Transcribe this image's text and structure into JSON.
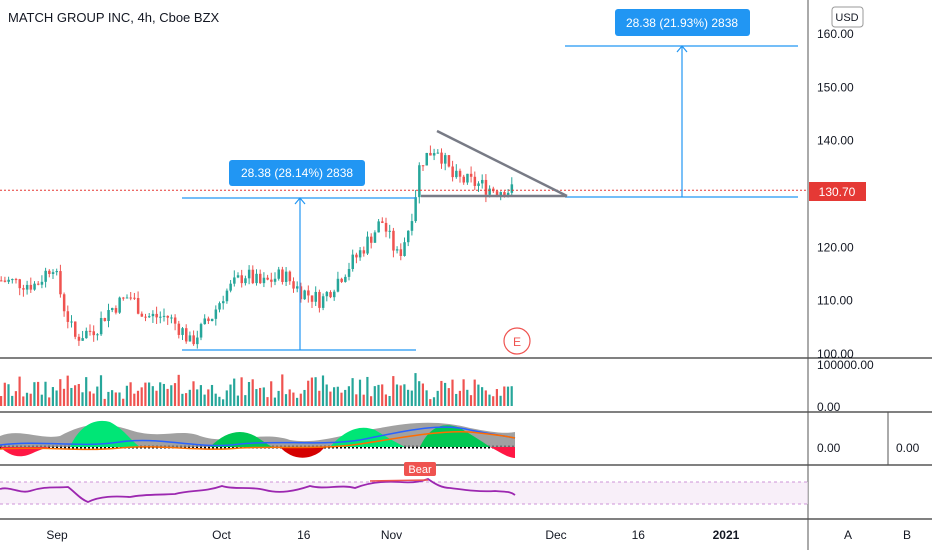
{
  "header": {
    "symbol_title": "MATCH GROUP INC, 4h, Cboe BZX",
    "currency_button": "USD"
  },
  "colors": {
    "up": "#26a69a",
    "down": "#ef5350",
    "measure": "#2196f3",
    "triangle": "#787b86",
    "last_price": "#e53935",
    "rsi": "#9c27b0"
  },
  "price_axis": {
    "ticks": [
      "160.00",
      "150.00",
      "140.00",
      "130.00",
      "120.00",
      "110.00",
      "100.00"
    ],
    "last_price_label": "130.70"
  },
  "volume_pane": {
    "top_label": "100000.00",
    "bottom_label": "0.00"
  },
  "osc_pane": {
    "label": "0.00",
    "extra_label": "0.00"
  },
  "rsi_pane": {
    "signal_label": "Bear"
  },
  "measures": {
    "left": "28.38 (28.14%) 2838",
    "right": "28.38 (21.93%) 2838"
  },
  "earnings_marker": "E",
  "time_axis": {
    "ticks": [
      "Sep",
      "Oct",
      "16",
      "Nov",
      "Dec",
      "16",
      "2021"
    ]
  },
  "corner_buttons": {
    "a": "A",
    "b": "B"
  },
  "chart_data": {
    "type": "candlestick",
    "title": "MATCH GROUP INC, 4h, Cboe BZX",
    "ylim": [
      100,
      160
    ],
    "last_price": 130.7,
    "x_tick_labels": [
      "Sep",
      "Oct",
      "16",
      "Nov",
      "Dec",
      "16",
      "2021"
    ],
    "y_tick_labels": [
      "160.00",
      "150.00",
      "140.00",
      "130.00",
      "120.00",
      "110.00",
      "100.00"
    ],
    "close_path": [
      {
        "date": "2020-08-20",
        "close": 114
      },
      {
        "date": "2020-08-24",
        "close": 113.5
      },
      {
        "date": "2020-08-28",
        "close": 113
      },
      {
        "date": "2020-08-31",
        "close": 117
      },
      {
        "date": "2020-09-02",
        "close": 109
      },
      {
        "date": "2020-09-04",
        "close": 103
      },
      {
        "date": "2020-09-08",
        "close": 105
      },
      {
        "date": "2020-09-10",
        "close": 108
      },
      {
        "date": "2020-09-14",
        "close": 111
      },
      {
        "date": "2020-09-17",
        "close": 107
      },
      {
        "date": "2020-09-21",
        "close": 107
      },
      {
        "date": "2020-09-24",
        "close": 104
      },
      {
        "date": "2020-09-25",
        "close": 102
      },
      {
        "date": "2020-09-29",
        "close": 107
      },
      {
        "date": "2020-10-01",
        "close": 111
      },
      {
        "date": "2020-10-05",
        "close": 115
      },
      {
        "date": "2020-10-08",
        "close": 113
      },
      {
        "date": "2020-10-12",
        "close": 115
      },
      {
        "date": "2020-10-15",
        "close": 112
      },
      {
        "date": "2020-10-19",
        "close": 110
      },
      {
        "date": "2020-10-22",
        "close": 114
      },
      {
        "date": "2020-10-26",
        "close": 119
      },
      {
        "date": "2020-10-28",
        "close": 122
      },
      {
        "date": "2020-10-30",
        "close": 125
      },
      {
        "date": "2020-11-02",
        "close": 118
      },
      {
        "date": "2020-11-04",
        "close": 124
      },
      {
        "date": "2020-11-05",
        "close": 129
      },
      {
        "date": "2020-11-06",
        "close": 136
      },
      {
        "date": "2020-11-09",
        "close": 139
      },
      {
        "date": "2020-11-12",
        "close": 133
      },
      {
        "date": "2020-11-16",
        "close": 132
      },
      {
        "date": "2020-11-19",
        "close": 131
      },
      {
        "date": "2020-11-23",
        "close": 130.7
      }
    ],
    "annotations": [
      {
        "type": "price_range",
        "label": "28.38 (28.14%) 2838",
        "from": 101,
        "to": 129.4
      },
      {
        "type": "price_range",
        "label": "28.38 (21.93%) 2838",
        "from": 129.4,
        "to": 157.8
      },
      {
        "type": "triangle",
        "top_start": 141.5,
        "base": 129.4
      },
      {
        "type": "earnings",
        "label": "E",
        "date": "2020-11-10"
      }
    ]
  }
}
